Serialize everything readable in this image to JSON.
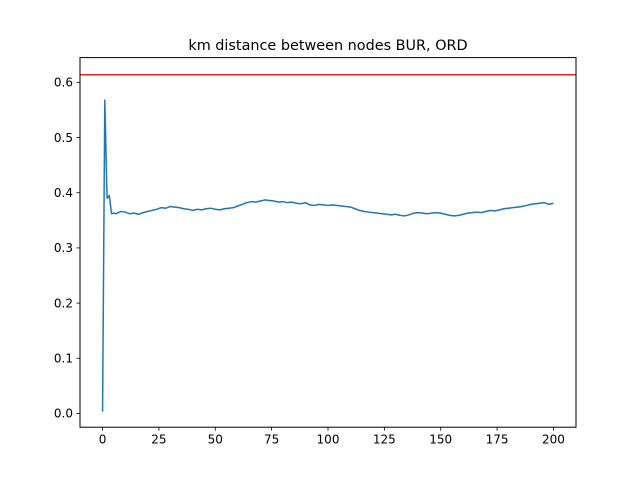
{
  "chart_data": {
    "type": "line",
    "title": "km distance between nodes BUR, ORD",
    "xlabel": "",
    "ylabel": "",
    "xlim": [
      -10,
      210
    ],
    "ylim": [
      -0.025,
      0.645
    ],
    "x_ticks": [
      0,
      25,
      50,
      75,
      100,
      125,
      150,
      175,
      200
    ],
    "y_ticks": [
      0.0,
      0.1,
      0.2,
      0.3,
      0.4,
      0.5,
      0.6
    ],
    "x_tick_labels": [
      "0",
      "25",
      "50",
      "75",
      "100",
      "125",
      "150",
      "175",
      "200"
    ],
    "y_tick_labels": [
      "0.0",
      "0.1",
      "0.2",
      "0.3",
      "0.4",
      "0.5",
      "0.6"
    ],
    "grid": false,
    "series": [
      {
        "color": "#1f77b4",
        "x": [
          0,
          1,
          2,
          3,
          4,
          5,
          6,
          8,
          10,
          12,
          14,
          16,
          18,
          20,
          22,
          24,
          26,
          28,
          30,
          32,
          34,
          36,
          38,
          40,
          42,
          44,
          46,
          48,
          50,
          52,
          54,
          56,
          58,
          60,
          62,
          64,
          66,
          68,
          70,
          72,
          74,
          76,
          78,
          80,
          82,
          84,
          86,
          88,
          90,
          92,
          94,
          96,
          98,
          100,
          102,
          104,
          106,
          108,
          110,
          112,
          114,
          116,
          118,
          120,
          122,
          124,
          126,
          128,
          130,
          132,
          134,
          136,
          138,
          140,
          142,
          144,
          146,
          148,
          150,
          152,
          154,
          156,
          158,
          160,
          162,
          164,
          166,
          168,
          170,
          172,
          174,
          176,
          178,
          180,
          182,
          184,
          186,
          188,
          190,
          192,
          194,
          196,
          198,
          200
        ],
        "y": [
          0.003,
          0.568,
          0.39,
          0.395,
          0.362,
          0.363,
          0.362,
          0.366,
          0.365,
          0.362,
          0.363,
          0.361,
          0.364,
          0.366,
          0.368,
          0.37,
          0.373,
          0.372,
          0.375,
          0.374,
          0.373,
          0.371,
          0.37,
          0.368,
          0.37,
          0.369,
          0.371,
          0.372,
          0.37,
          0.369,
          0.371,
          0.372,
          0.373,
          0.376,
          0.379,
          0.382,
          0.384,
          0.383,
          0.385,
          0.387,
          0.386,
          0.385,
          0.383,
          0.384,
          0.382,
          0.383,
          0.381,
          0.38,
          0.382,
          0.378,
          0.377,
          0.379,
          0.378,
          0.377,
          0.378,
          0.377,
          0.376,
          0.375,
          0.374,
          0.371,
          0.368,
          0.366,
          0.365,
          0.364,
          0.363,
          0.362,
          0.361,
          0.36,
          0.361,
          0.359,
          0.358,
          0.36,
          0.363,
          0.364,
          0.363,
          0.362,
          0.363,
          0.364,
          0.363,
          0.361,
          0.359,
          0.358,
          0.359,
          0.361,
          0.363,
          0.364,
          0.365,
          0.364,
          0.366,
          0.368,
          0.367,
          0.369,
          0.371,
          0.372,
          0.373,
          0.374,
          0.375,
          0.377,
          0.379,
          0.38,
          0.381,
          0.382,
          0.379,
          0.381
        ]
      }
    ],
    "reference_lines": [
      {
        "orientation": "horizontal",
        "y": 0.614,
        "color": "#d62728"
      }
    ]
  }
}
